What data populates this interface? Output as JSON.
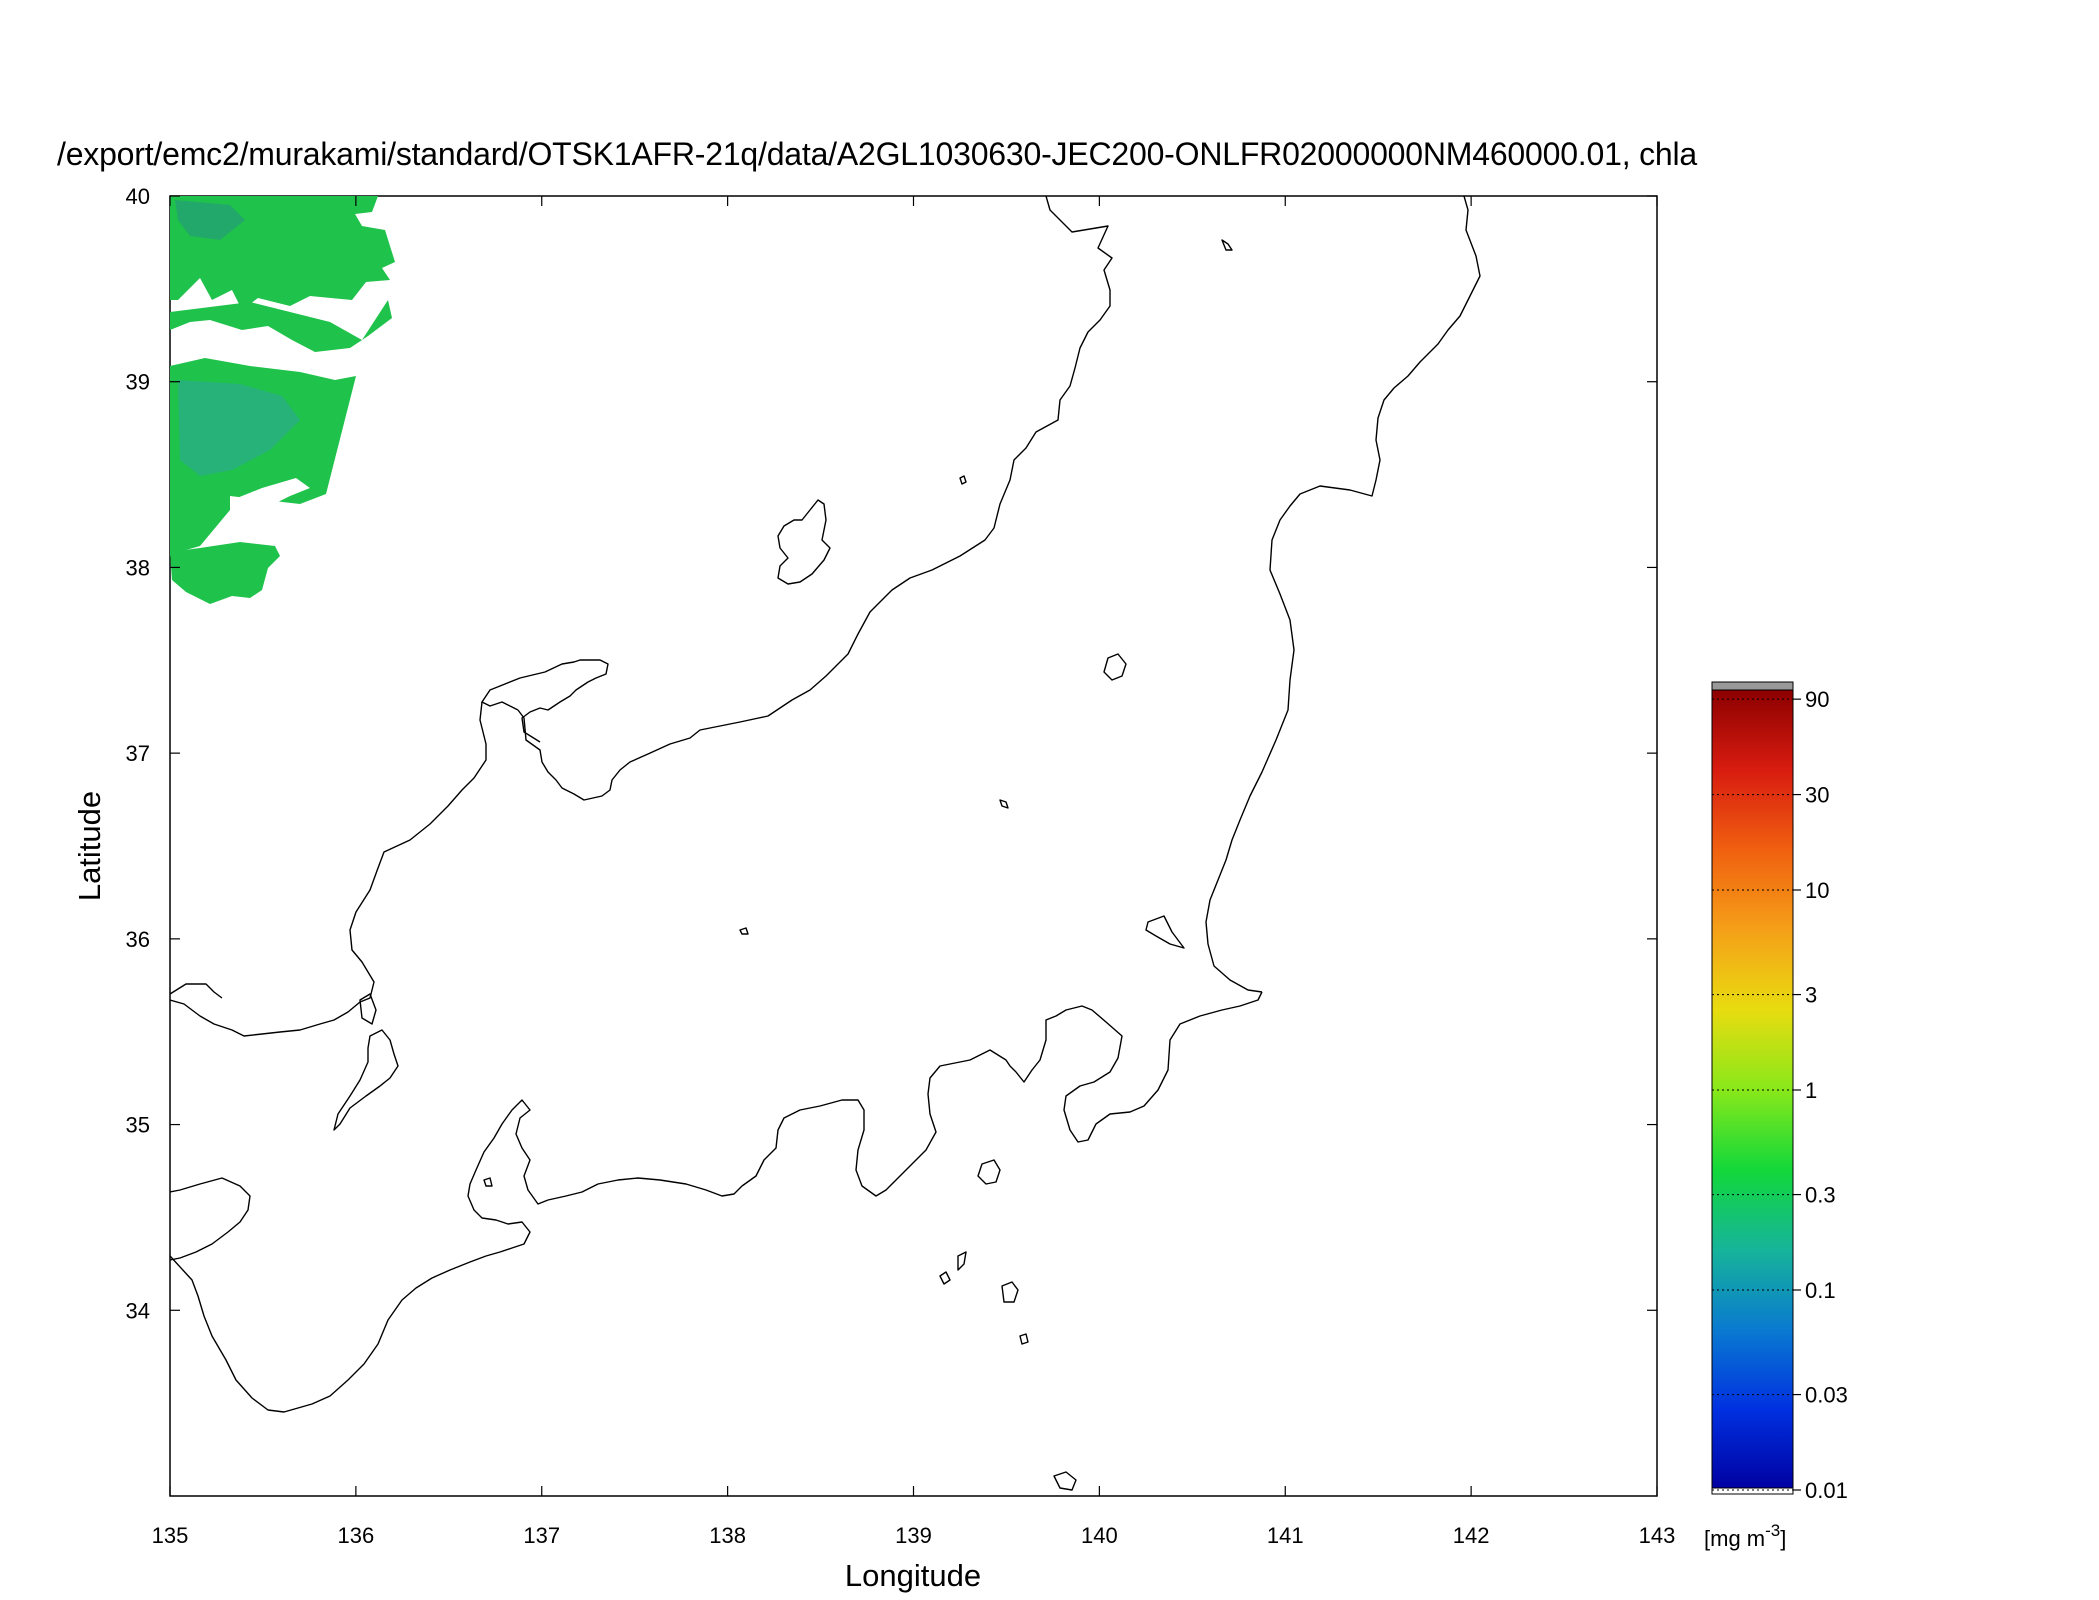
{
  "title": "/export/emc2/murakami/standard/OTSK1AFR-21q/data/A2GL1030630-JEC200-ONLFR02000000NM460000.01, chla",
  "map": {
    "region": "Central Honshu, Japan",
    "lon_range": [
      135,
      143
    ],
    "lat_range": [
      33,
      40
    ],
    "x_ticks": [
      135,
      136,
      137,
      138,
      139,
      140,
      141,
      142,
      143
    ],
    "y_ticks": [
      34,
      35,
      36,
      37,
      38,
      39,
      40
    ],
    "xlabel": "Longitude",
    "ylabel": "Latitude",
    "data_color": "#1fc24a",
    "data_color_alt": "#22a86a"
  },
  "colorbar": {
    "ticks": [
      "90",
      "30",
      "10",
      "3",
      "1",
      "0.3",
      "0.1",
      "0.03",
      "0.01"
    ],
    "tick_values": [
      90,
      30,
      10,
      3,
      1,
      0.3,
      0.1,
      0.03,
      0.01
    ],
    "range": [
      0.01,
      100
    ],
    "scale": "log",
    "unit_main": "[mg m",
    "unit_sup": "-3",
    "unit_end": "]",
    "colors": [
      "#0000a0",
      "#0030e0",
      "#0a7ad0",
      "#16b49a",
      "#12d83a",
      "#88e81a",
      "#e8dc10",
      "#f5a018",
      "#f06010",
      "#d81c10",
      "#8c0000"
    ],
    "overflow_color": "#999999"
  }
}
